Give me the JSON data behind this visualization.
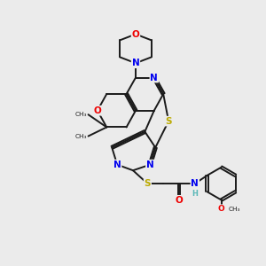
{
  "bg_color": "#ebebeb",
  "bond_color": "#1a1a1a",
  "bond_width": 1.4,
  "atom_colors": {
    "N": "#0000ee",
    "O": "#ee0000",
    "S": "#bbaa00",
    "C": "#1a1a1a",
    "H": "#5ab8b8"
  },
  "font_size_atom": 7.5,
  "font_size_small": 6.0,
  "xlim": [
    0,
    10
  ],
  "ylim": [
    0,
    10
  ]
}
